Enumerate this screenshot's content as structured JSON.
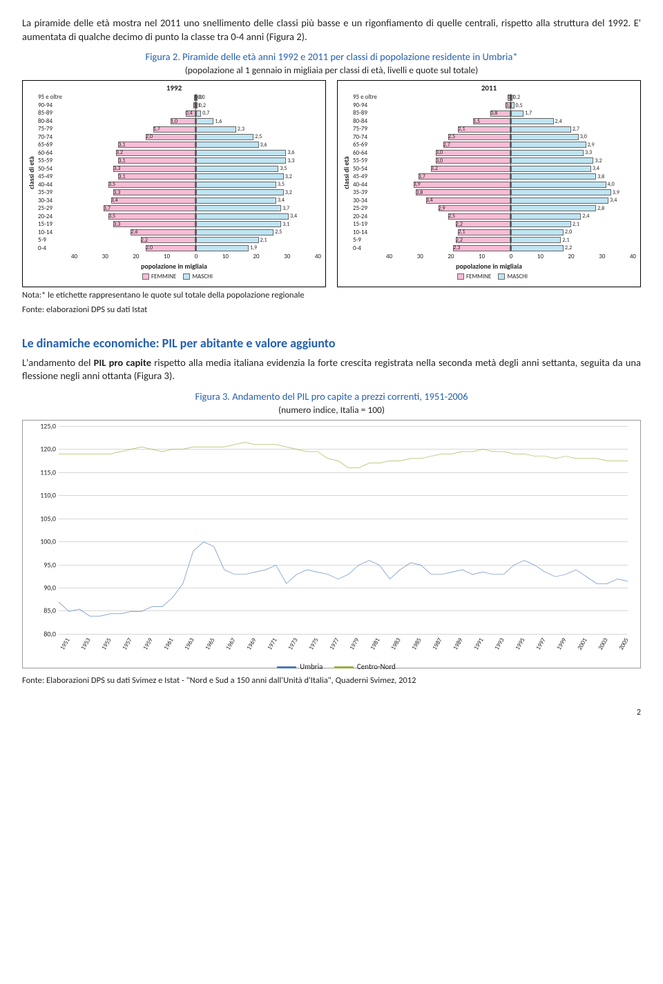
{
  "intro_para": "La piramide delle età mostra nel 2011 uno snellimento delle classi più basse e un rigonfiamento di quelle centrali, rispetto alla struttura del 1992. E' aumentata di qualche decimo di punto la classe tra 0-4 anni (Figura 2).",
  "fig2_title": "Figura 2. Piramide delle età anni 1992 e 2011 per classi di popolazione residente in Umbria*",
  "fig2_sub": "(popolazione al 1 gennaio in migliaia per classi di età, livelli e quote sul totale)",
  "fig2_note1": "Nota:* le etichette rappresentano le quote sul totale della popolazione regionale",
  "fig2_note2": "Fonte: elaborazioni DPS su dati Istat",
  "pyramid": {
    "ylabel": "classi di età",
    "xlabel": "popolazione in migliaia",
    "legend_f": "FEMMINE",
    "legend_m": "MASCHI",
    "categories": [
      "95 e oltre",
      "90-94",
      "85-89",
      "80-84",
      "75-79",
      "70-74",
      "65-69",
      "60-64",
      "55-59",
      "50-54",
      "45-49",
      "40-44",
      "35-39",
      "30-34",
      "25-29",
      "20-24",
      "15-19",
      "10-14",
      "5-9",
      "0-4"
    ],
    "xticks": [
      "40",
      "30",
      "20",
      "10",
      "0",
      "10",
      "20",
      "30",
      "40"
    ],
    "xmax": 40,
    "p1992": {
      "year": "1992",
      "femmine": [
        0.1,
        0.6,
        3.2,
        8.0,
        13.6,
        16.0,
        24.8,
        25.6,
        24.8,
        26.4,
        24.8,
        28.0,
        26.4,
        27.2,
        29.6,
        28.0,
        26.4,
        20.8,
        17.6,
        16.0
      ],
      "maschi": [
        0.1,
        0.4,
        1.6,
        5.6,
        12.8,
        18.4,
        20.0,
        28.8,
        28.8,
        26.4,
        28.0,
        25.6,
        28.0,
        25.6,
        27.2,
        29.6,
        27.2,
        24.8,
        20.0,
        16.8
      ],
      "lbl_f": [
        "0,0",
        "0,1",
        "0,4",
        "1,0",
        "1,7",
        "2,0",
        "3,1",
        "3,2",
        "3,1",
        "3,3",
        "3,1",
        "3,5",
        "3,3",
        "3,4",
        "3,7",
        "3,5",
        "3,3",
        "2,6",
        "2,2",
        "2,0"
      ],
      "lbl_m": [
        "0,0",
        "0,2",
        "0,7",
        "1,6",
        "2,3",
        "2,5",
        "3,6",
        "3,6",
        "3,3",
        "3,5",
        "3,2",
        "3,5",
        "3,2",
        "3,4",
        "3,7",
        "3,4",
        "3,1",
        "2,5",
        "2,1",
        "1,9"
      ]
    },
    "p2011": {
      "year": "2011",
      "femmine": [
        0.8,
        1.6,
        6.4,
        12.0,
        16.8,
        20.0,
        21.6,
        24.0,
        24.0,
        25.6,
        29.6,
        31.2,
        30.4,
        27.2,
        23.2,
        20.0,
        17.6,
        16.8,
        17.6,
        18.4
      ],
      "maschi": [
        0.2,
        1.0,
        4.0,
        13.6,
        19.2,
        21.6,
        24.0,
        23.2,
        26.4,
        25.6,
        27.2,
        30.4,
        32.0,
        31.2,
        27.2,
        22.4,
        19.2,
        16.8,
        16.0,
        16.8
      ],
      "lbl_f": [
        "0,1",
        "0,2",
        "0,8",
        "1,5",
        "2,1",
        "2,5",
        "2,7",
        "3,0",
        "3,0",
        "3,2",
        "3,7",
        "3,9",
        "3,8",
        "3,4",
        "2,9",
        "2,5",
        "2,2",
        "2,1",
        "2,2",
        "2,3"
      ],
      "lbl_m": [
        "0,2",
        "0,5",
        "1,7",
        "2,4",
        "2,7",
        "3,0",
        "2,9",
        "3,3",
        "3,2",
        "3,4",
        "3,8",
        "4,0",
        "3,9",
        "3,4",
        "2,8",
        "2,4",
        "2,1",
        "2,0",
        "2,1",
        "2,2"
      ]
    },
    "color_f": "#f7bcd6",
    "color_m": "#bfe4f2",
    "border": "#666666"
  },
  "section_title": "Le dinamiche economiche: PIL per abitante e valore aggiunto",
  "section_para_a": "L'andamento del ",
  "section_para_b": "PIL pro capite",
  "section_para_c": " rispetto alla media italiana evidenzia la forte crescita registrata nella seconda metà degli anni settanta, seguita da una flessione negli anni ottanta (Figura 3).",
  "fig3_title": "Figura 3. Andamento del PIL pro capite a prezzi correnti, 1951-2006",
  "fig3_sub": "(numero indice, Italia = 100)",
  "fig3_source": "Fonte: Elaborazioni DPS su dati Svimez e Istat - \"Nord e Sud a 150 anni dall'Unità d'Italia\", Quaderni Svimez, 2012",
  "line_chart": {
    "ymin": 80,
    "ymax": 125,
    "ystep": 5,
    "years": [
      1951,
      1953,
      1955,
      1957,
      1959,
      1961,
      1963,
      1965,
      1967,
      1969,
      1971,
      1973,
      1975,
      1977,
      1979,
      1981,
      1983,
      1985,
      1987,
      1989,
      1991,
      1993,
      1995,
      1997,
      1999,
      2001,
      2003,
      2005
    ],
    "umbria_color": "#4a78b8",
    "cn_color": "#9aae3f",
    "legend_umbria": "Umbria",
    "legend_cn": "Centro-Nord",
    "umbria": [
      87,
      85,
      85.5,
      84,
      84,
      84.5,
      84.5,
      85,
      85,
      86,
      86,
      88,
      91,
      98,
      100,
      99,
      94,
      93,
      93,
      93.5,
      94,
      95,
      91,
      93,
      94,
      93.5,
      93,
      92,
      93,
      95,
      96,
      95,
      92,
      94,
      95.5,
      95,
      93,
      93,
      93.5,
      94,
      93,
      93.5,
      93,
      93,
      95,
      96,
      95,
      93.5,
      92.5,
      93,
      94,
      92.5,
      91,
      91,
      92,
      91.5
    ],
    "cn": [
      119,
      119,
      119,
      119,
      119,
      119,
      119.5,
      120,
      120.5,
      120,
      119.5,
      120,
      120,
      120.5,
      120.5,
      120.5,
      120.5,
      121,
      121.5,
      121,
      121,
      121,
      120.5,
      120,
      119.5,
      119.5,
      118,
      117.5,
      116,
      116,
      117,
      117,
      117.5,
      117.5,
      118,
      118,
      118.5,
      119,
      119,
      119.5,
      119.5,
      120,
      119.5,
      119.5,
      119,
      119,
      118.5,
      118.5,
      118,
      118.5,
      118,
      118,
      118,
      117.5,
      117.5,
      117.5
    ]
  },
  "page_number": "2"
}
